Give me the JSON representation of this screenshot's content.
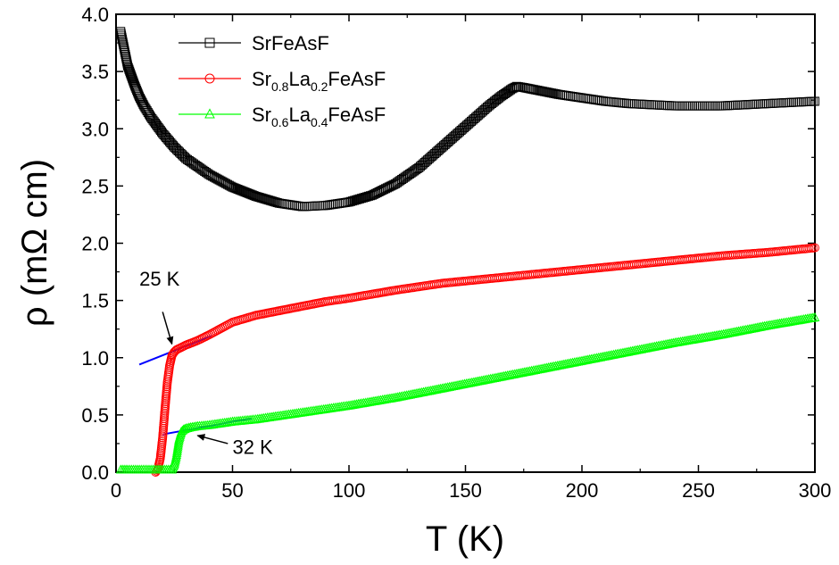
{
  "chart_data": {
    "type": "scatter",
    "xlabel": "T (K)",
    "ylabel": "ρ (mΩ cm)",
    "xlim": [
      0,
      300
    ],
    "ylim": [
      0.0,
      4.0
    ],
    "x_ticks": [
      0,
      50,
      100,
      150,
      200,
      250,
      300
    ],
    "y_ticks": [
      "0.0",
      "0.5",
      "1.0",
      "1.5",
      "2.0",
      "2.5",
      "3.0",
      "3.5",
      "4.0"
    ],
    "grid": false,
    "legend_position": "top-left",
    "series": [
      {
        "name": "SrFeAsF",
        "legend": {
          "base": "SrFeAsF"
        },
        "marker": "square",
        "color": "#000000",
        "x": [
          2,
          3,
          5,
          8,
          10,
          12,
          15,
          20,
          25,
          30,
          40,
          50,
          60,
          70,
          80,
          90,
          100,
          110,
          120,
          130,
          140,
          150,
          160,
          165,
          170,
          172,
          175,
          180,
          190,
          200,
          210,
          220,
          230,
          240,
          250,
          260,
          270,
          280,
          290,
          300
        ],
        "y": [
          3.85,
          3.75,
          3.55,
          3.38,
          3.28,
          3.2,
          3.1,
          2.96,
          2.84,
          2.74,
          2.6,
          2.49,
          2.41,
          2.35,
          2.32,
          2.33,
          2.36,
          2.42,
          2.52,
          2.66,
          2.84,
          3.02,
          3.2,
          3.28,
          3.35,
          3.37,
          3.36,
          3.34,
          3.3,
          3.27,
          3.24,
          3.22,
          3.21,
          3.2,
          3.2,
          3.2,
          3.21,
          3.22,
          3.23,
          3.24
        ]
      },
      {
        "name": "Sr0.8La0.2FeAsF",
        "legend": {
          "base": "Sr",
          "sub1": "0.8",
          "mid": "La",
          "sub2": "0.2",
          "tail": "FeAsF"
        },
        "marker": "circle",
        "color": "#ff0000",
        "x": [
          17,
          18,
          19,
          20,
          21,
          22,
          23,
          24,
          25,
          26,
          28,
          30,
          35,
          40,
          50,
          60,
          70,
          80,
          90,
          100,
          120,
          140,
          160,
          180,
          200,
          220,
          240,
          260,
          280,
          300
        ],
        "y": [
          0.0,
          0.03,
          0.12,
          0.3,
          0.55,
          0.78,
          0.93,
          1.02,
          1.05,
          1.07,
          1.09,
          1.11,
          1.15,
          1.2,
          1.31,
          1.37,
          1.41,
          1.45,
          1.49,
          1.52,
          1.59,
          1.65,
          1.69,
          1.73,
          1.77,
          1.81,
          1.85,
          1.89,
          1.92,
          1.96
        ]
      },
      {
        "name": "Sr0.6La0.4FeAsF",
        "legend": {
          "base": "Sr",
          "sub1": "0.6",
          "mid": "La",
          "sub2": "0.4",
          "tail": "FeAsF"
        },
        "marker": "triangle",
        "color": "#00ff00",
        "x": [
          2,
          5,
          10,
          15,
          20,
          24,
          25,
          26,
          27,
          28,
          29,
          30,
          32,
          35,
          40,
          50,
          60,
          70,
          80,
          90,
          100,
          120,
          140,
          160,
          180,
          200,
          220,
          240,
          260,
          280,
          300
        ],
        "y": [
          0.02,
          0.02,
          0.02,
          0.02,
          0.02,
          0.02,
          0.06,
          0.15,
          0.28,
          0.35,
          0.37,
          0.38,
          0.39,
          0.4,
          0.41,
          0.44,
          0.46,
          0.49,
          0.52,
          0.55,
          0.58,
          0.65,
          0.73,
          0.81,
          0.89,
          0.97,
          1.05,
          1.13,
          1.2,
          1.28,
          1.35
        ]
      }
    ],
    "fit_lines": [
      {
        "color": "#0000ff",
        "x": [
          10,
          41
        ],
        "y": [
          0.94,
          1.19
        ]
      },
      {
        "color": "#0000ff",
        "x": [
          20,
          58
        ],
        "y": [
          0.33,
          0.47
        ]
      }
    ],
    "annotations": [
      {
        "text": "25 K",
        "text_x": 10,
        "text_y": 1.63,
        "arrow_from": [
          20,
          1.4
        ],
        "arrow_to": [
          24,
          1.12
        ]
      },
      {
        "text": "32 K",
        "text_x": 50,
        "text_y": 0.16,
        "arrow_from": [
          48,
          0.25
        ],
        "arrow_to": [
          35,
          0.32
        ]
      }
    ]
  }
}
